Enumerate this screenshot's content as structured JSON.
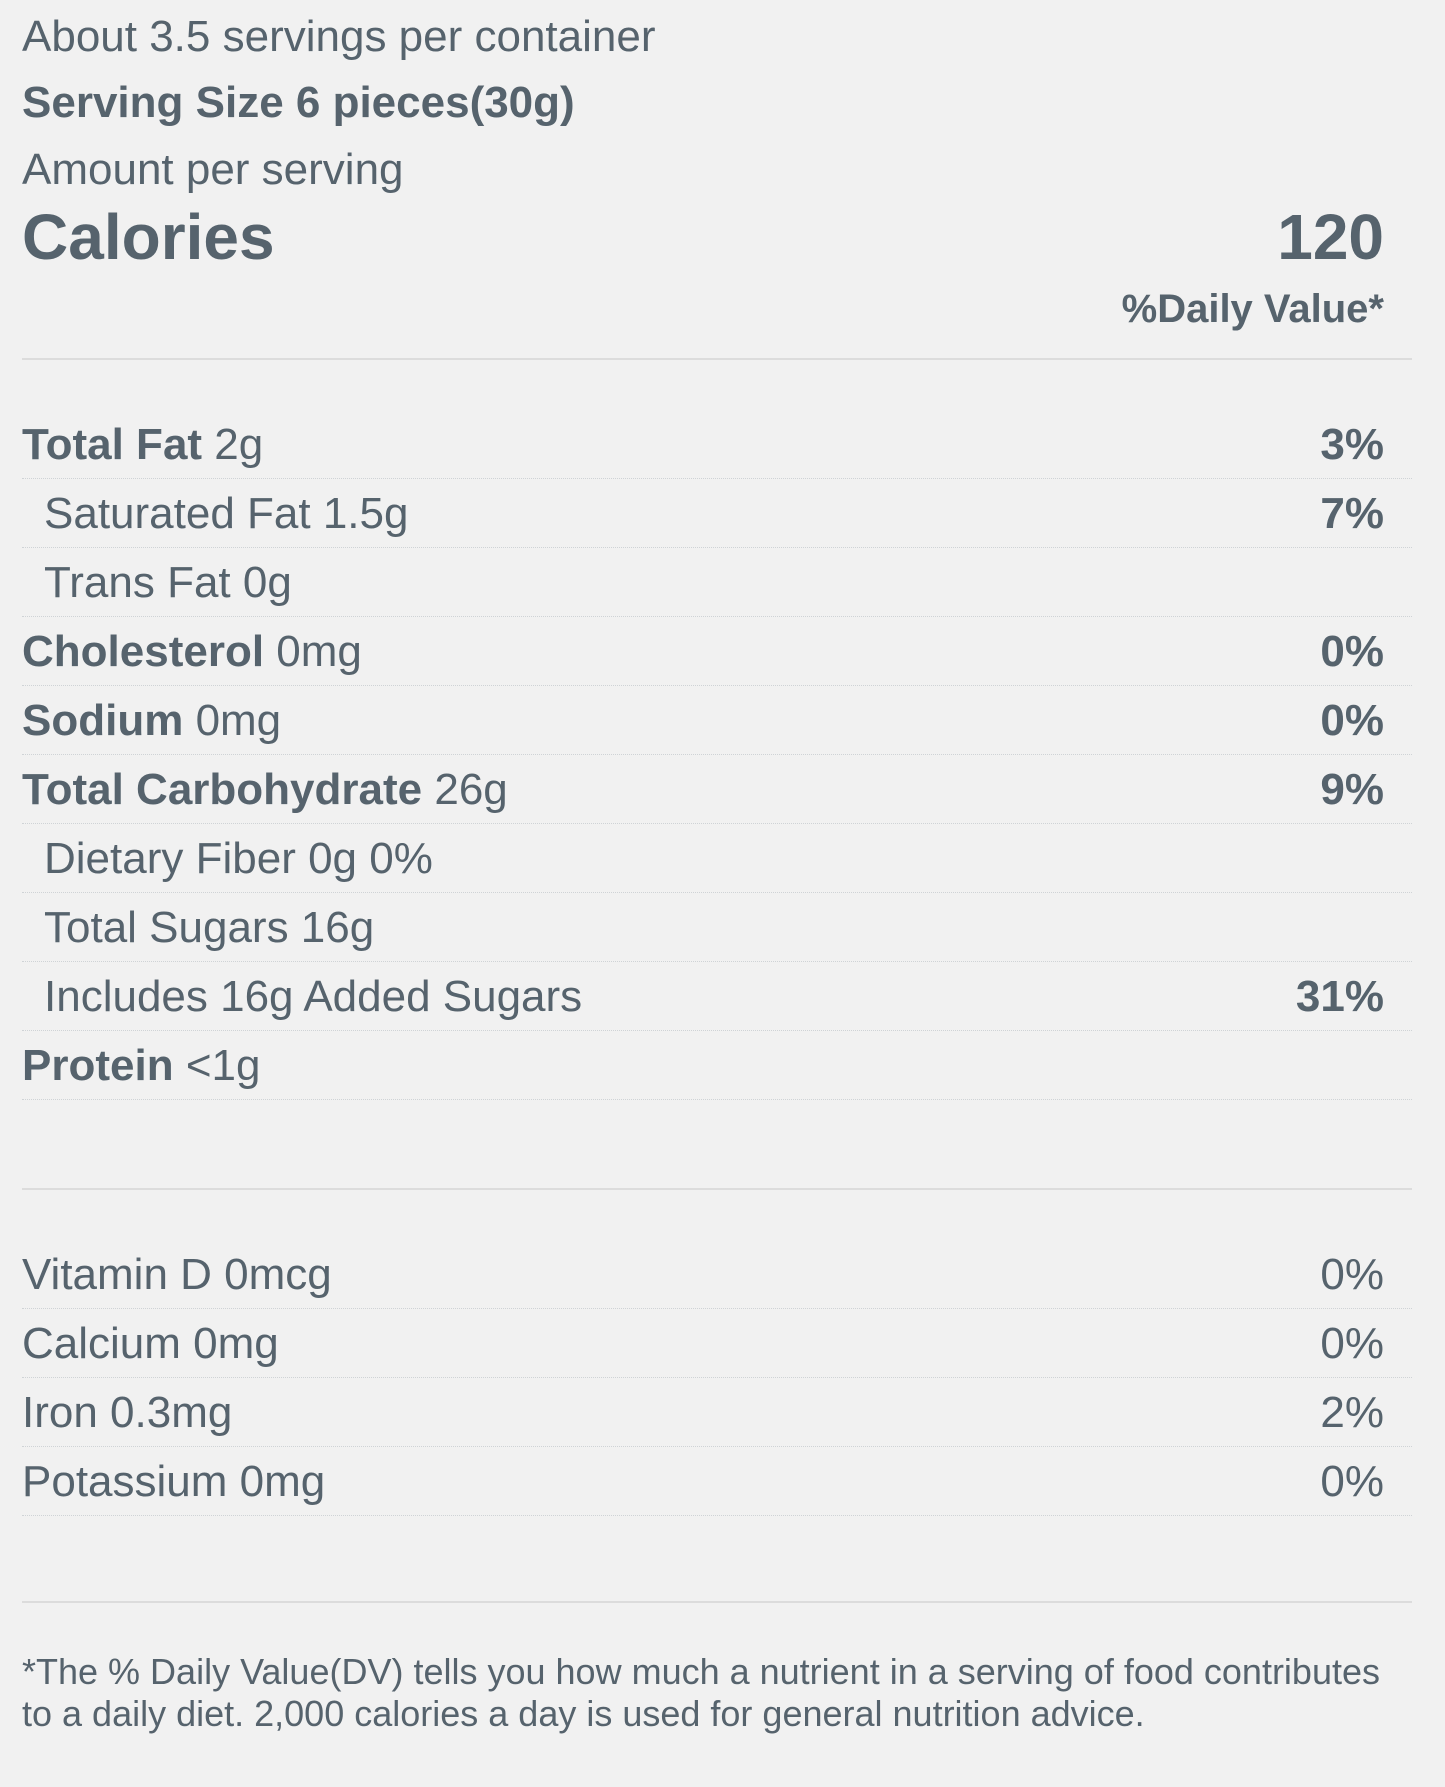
{
  "header": {
    "servings": "About 3.5 servings per container",
    "serving_size": "Serving Size 6 pieces(30g)",
    "amount_per_serving": "Amount per serving",
    "calories_label": "Calories",
    "calories_value": "120",
    "daily_value_header": "%Daily Value*"
  },
  "nutrients": [
    {
      "name": "Total Fat",
      "amount": "2g",
      "dv": "3%"
    },
    {
      "name": "Saturated Fat 1.5g",
      "amount": "",
      "dv": "7%"
    },
    {
      "name": "Trans Fat 0g",
      "amount": "",
      "dv": ""
    },
    {
      "name": "Cholesterol",
      "amount": "0mg",
      "dv": "0%"
    },
    {
      "name": "Sodium",
      "amount": "0mg",
      "dv": "0%"
    },
    {
      "name": "Total Carbohydrate",
      "amount": "26g",
      "dv": "9%"
    },
    {
      "name": "Dietary Fiber 0g 0%",
      "amount": "",
      "dv": ""
    },
    {
      "name": "Total Sugars 16g",
      "amount": "",
      "dv": ""
    },
    {
      "name": "Includes 16g Added Sugars",
      "amount": "",
      "dv": "31%"
    },
    {
      "name": "Protein",
      "amount": "<1g",
      "dv": ""
    }
  ],
  "vitamins": [
    {
      "name": "Vitamin D 0mcg",
      "dv": "0%"
    },
    {
      "name": "Calcium 0mg",
      "dv": "0%"
    },
    {
      "name": "Iron 0.3mg",
      "dv": "2%"
    },
    {
      "name": "Potassium 0mg",
      "dv": "0%"
    }
  ],
  "footnote": "*The % Daily Value(DV) tells you how much a nutrient in a serving of food contributes to a daily diet. 2,000 calories a day is used for general nutrition advice."
}
